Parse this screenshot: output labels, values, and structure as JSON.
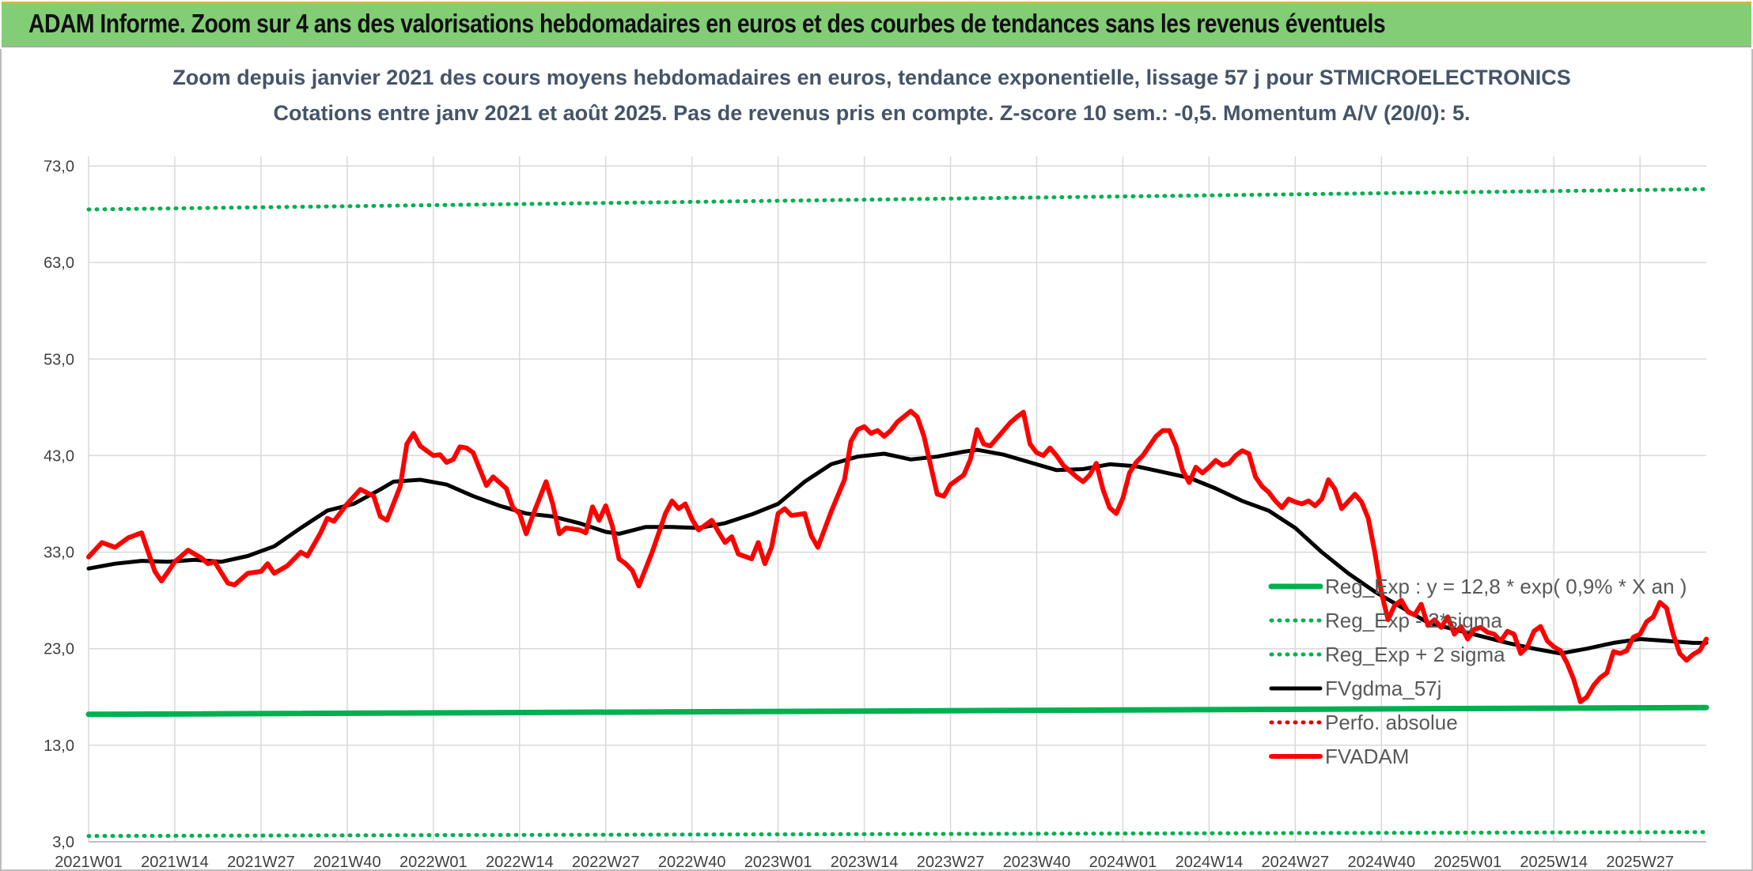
{
  "banner": {
    "title": "ADAM Informe. Zoom sur 4 ans des valorisations hebdomadaires en euros et des courbes de tendances sans les revenus éventuels"
  },
  "colors": {
    "banner_bg": "#82cd76",
    "trend_green": "#00b050",
    "sigma_green": "#00b050",
    "smoothing_black": "#000000",
    "perf_red": "#e00000",
    "price_red": "#ff0000",
    "title_text": "#44546a",
    "grid": "#d9d9d9"
  },
  "chart_data": {
    "type": "line",
    "title": "Zoom depuis janvier 2021 des cours moyens hebdomadaires en euros, tendance exponentielle, lissage 57 j pour STMICROELECTRONICS",
    "subtitle": "Cotations entre janv 2021 et août 2025. Pas de revenus pris en compte. Z-score 10 sem.: -0,5. Momentum A/V (20/0): 5.",
    "xlabel": "",
    "ylabel": "",
    "ylim": [
      3,
      73
    ],
    "yticks": [
      "73,0",
      "63,0",
      "53,0",
      "43,0",
      "33,0",
      "23,0",
      "13,0",
      "3,0"
    ],
    "ytick_values": [
      73,
      63,
      53,
      43,
      33,
      23,
      13,
      3
    ],
    "x_categories": [
      "2021W01",
      "2021W14",
      "2021W27",
      "2021W40",
      "2022W01",
      "2022W14",
      "2022W27",
      "2022W40",
      "2023W01",
      "2023W14",
      "2023W27",
      "2023W40",
      "2024W01",
      "2024W14",
      "2024W27",
      "2024W40",
      "2025W01",
      "2025W14",
      "2025W27"
    ],
    "x_tick_week_index": [
      0,
      13,
      26,
      39,
      52,
      65,
      78,
      91,
      104,
      117,
      130,
      143,
      156,
      169,
      182,
      195,
      208,
      221,
      234
    ],
    "x_week_count": 245,
    "grid": true,
    "legend_position": "bottom-right",
    "series": [
      {
        "name": "Reg_Exp : y = 12,8 * exp( 0,9% *  X  an )",
        "style": "solid-thick",
        "color": "#00b050",
        "points": [
          [
            0,
            16.2
          ],
          [
            244,
            16.9
          ]
        ]
      },
      {
        "name": "Reg_Exp - 2*sigma",
        "style": "dotted",
        "color": "#00b050",
        "points": [
          [
            0,
            3.6
          ],
          [
            244,
            4.0
          ]
        ]
      },
      {
        "name": "Reg_Exp + 2 sigma",
        "style": "dotted",
        "color": "#00b050",
        "points": [
          [
            0,
            68.5
          ],
          [
            244,
            70.6
          ]
        ]
      },
      {
        "name": "FVgdma_57j",
        "style": "solid",
        "color": "#000000",
        "points": [
          [
            0,
            31.3
          ],
          [
            4,
            31.8
          ],
          [
            8,
            32.1
          ],
          [
            12,
            32.0
          ],
          [
            16,
            32.2
          ],
          [
            20,
            32.0
          ],
          [
            24,
            32.6
          ],
          [
            28,
            33.6
          ],
          [
            32,
            35.5
          ],
          [
            36,
            37.3
          ],
          [
            40,
            38.0
          ],
          [
            44,
            39.5
          ],
          [
            46,
            40.3
          ],
          [
            50,
            40.5
          ],
          [
            54,
            40.0
          ],
          [
            58,
            38.8
          ],
          [
            62,
            37.8
          ],
          [
            66,
            37.0
          ],
          [
            70,
            36.7
          ],
          [
            74,
            36.0
          ],
          [
            78,
            35.1
          ],
          [
            80,
            34.9
          ],
          [
            84,
            35.6
          ],
          [
            88,
            35.6
          ],
          [
            92,
            35.5
          ],
          [
            96,
            36.0
          ],
          [
            100,
            36.9
          ],
          [
            104,
            38.0
          ],
          [
            108,
            40.3
          ],
          [
            112,
            42.1
          ],
          [
            116,
            42.9
          ],
          [
            120,
            43.2
          ],
          [
            124,
            42.6
          ],
          [
            128,
            42.9
          ],
          [
            132,
            43.4
          ],
          [
            134,
            43.6
          ],
          [
            138,
            43.1
          ],
          [
            142,
            42.3
          ],
          [
            146,
            41.5
          ],
          [
            150,
            41.6
          ],
          [
            154,
            42.1
          ],
          [
            158,
            41.9
          ],
          [
            162,
            41.3
          ],
          [
            166,
            40.7
          ],
          [
            170,
            39.6
          ],
          [
            174,
            38.3
          ],
          [
            178,
            37.3
          ],
          [
            182,
            35.5
          ],
          [
            186,
            33.0
          ],
          [
            190,
            30.8
          ],
          [
            194,
            28.9
          ],
          [
            198,
            27.3
          ],
          [
            202,
            25.7
          ],
          [
            206,
            25.0
          ],
          [
            210,
            24.3
          ],
          [
            214,
            23.6
          ],
          [
            218,
            23.0
          ],
          [
            222,
            22.5
          ],
          [
            226,
            23.0
          ],
          [
            230,
            23.6
          ],
          [
            234,
            24.0
          ],
          [
            238,
            23.8
          ],
          [
            242,
            23.6
          ],
          [
            244,
            23.6
          ]
        ]
      },
      {
        "name": "Perfo. absolue",
        "style": "dotted",
        "color": "#e00000",
        "points": []
      },
      {
        "name": "FVADAM",
        "style": "solid-thick",
        "color": "#ff0000",
        "points": [
          [
            0,
            32.5
          ],
          [
            2,
            34.0
          ],
          [
            4,
            33.5
          ],
          [
            6,
            34.5
          ],
          [
            8,
            35.0
          ],
          [
            10,
            31.0
          ],
          [
            11,
            30.0
          ],
          [
            13,
            32.0
          ],
          [
            15,
            33.2
          ],
          [
            17,
            32.4
          ],
          [
            18,
            31.8
          ],
          [
            19,
            32.0
          ],
          [
            21,
            29.8
          ],
          [
            22,
            29.6
          ],
          [
            24,
            30.8
          ],
          [
            26,
            31.0
          ],
          [
            27,
            31.8
          ],
          [
            28,
            30.8
          ],
          [
            30,
            31.6
          ],
          [
            31,
            32.3
          ],
          [
            32,
            33.0
          ],
          [
            33,
            32.6
          ],
          [
            35,
            35.0
          ],
          [
            36,
            36.5
          ],
          [
            37,
            36.2
          ],
          [
            39,
            38.0
          ],
          [
            41,
            39.5
          ],
          [
            43,
            38.8
          ],
          [
            44,
            36.7
          ],
          [
            45,
            36.3
          ],
          [
            47,
            39.8
          ],
          [
            48,
            44.2
          ],
          [
            49,
            45.3
          ],
          [
            50,
            44.0
          ],
          [
            52,
            43.0
          ],
          [
            53,
            43.1
          ],
          [
            54,
            42.3
          ],
          [
            55,
            42.6
          ],
          [
            56,
            43.9
          ],
          [
            57,
            43.8
          ],
          [
            58,
            43.3
          ],
          [
            60,
            39.9
          ],
          [
            61,
            40.8
          ],
          [
            63,
            39.6
          ],
          [
            64,
            37.6
          ],
          [
            65,
            37.0
          ],
          [
            66,
            34.9
          ],
          [
            67,
            36.8
          ],
          [
            69,
            40.3
          ],
          [
            70,
            38.0
          ],
          [
            71,
            34.9
          ],
          [
            72,
            35.5
          ],
          [
            74,
            35.3
          ],
          [
            75,
            35.0
          ],
          [
            76,
            37.7
          ],
          [
            77,
            36.3
          ],
          [
            78,
            37.8
          ],
          [
            79,
            35.7
          ],
          [
            80,
            32.3
          ],
          [
            81,
            31.8
          ],
          [
            82,
            31.1
          ],
          [
            83,
            29.5
          ],
          [
            85,
            33.0
          ],
          [
            87,
            37.0
          ],
          [
            88,
            38.3
          ],
          [
            89,
            37.5
          ],
          [
            90,
            38.0
          ],
          [
            91,
            36.4
          ],
          [
            92,
            35.3
          ],
          [
            94,
            36.3
          ],
          [
            95,
            35.1
          ],
          [
            96,
            34.0
          ],
          [
            97,
            34.6
          ],
          [
            98,
            32.8
          ],
          [
            100,
            32.3
          ],
          [
            101,
            34.0
          ],
          [
            102,
            31.8
          ],
          [
            103,
            33.5
          ],
          [
            104,
            37.0
          ],
          [
            105,
            37.5
          ],
          [
            106,
            36.8
          ],
          [
            108,
            37.0
          ],
          [
            109,
            34.7
          ],
          [
            110,
            33.5
          ],
          [
            112,
            37.2
          ],
          [
            114,
            40.5
          ],
          [
            115,
            44.5
          ],
          [
            116,
            45.7
          ],
          [
            117,
            46.0
          ],
          [
            118,
            45.3
          ],
          [
            119,
            45.6
          ],
          [
            120,
            45.0
          ],
          [
            121,
            45.6
          ],
          [
            122,
            46.5
          ],
          [
            124,
            47.6
          ],
          [
            125,
            47.0
          ],
          [
            126,
            45.0
          ],
          [
            128,
            39.0
          ],
          [
            129,
            38.8
          ],
          [
            130,
            40.0
          ],
          [
            132,
            41.0
          ],
          [
            133,
            42.6
          ],
          [
            134,
            45.7
          ],
          [
            135,
            44.2
          ],
          [
            136,
            44.0
          ],
          [
            138,
            45.6
          ],
          [
            139,
            46.4
          ],
          [
            140,
            47.0
          ],
          [
            141,
            47.5
          ],
          [
            142,
            44.2
          ],
          [
            143,
            43.3
          ],
          [
            144,
            43.0
          ],
          [
            145,
            43.8
          ],
          [
            146,
            43.0
          ],
          [
            147,
            42.0
          ],
          [
            149,
            40.8
          ],
          [
            150,
            40.3
          ],
          [
            151,
            41.0
          ],
          [
            152,
            42.2
          ],
          [
            153,
            39.5
          ],
          [
            154,
            37.6
          ],
          [
            155,
            37.0
          ],
          [
            156,
            38.6
          ],
          [
            157,
            41.2
          ],
          [
            158,
            42.3
          ],
          [
            159,
            43.0
          ],
          [
            161,
            45.0
          ],
          [
            162,
            45.6
          ],
          [
            163,
            45.6
          ],
          [
            164,
            44.0
          ],
          [
            165,
            41.5
          ],
          [
            166,
            40.2
          ],
          [
            167,
            41.8
          ],
          [
            168,
            41.2
          ],
          [
            169,
            41.8
          ],
          [
            170,
            42.5
          ],
          [
            171,
            42.0
          ],
          [
            172,
            42.2
          ],
          [
            173,
            43.0
          ],
          [
            174,
            43.5
          ],
          [
            175,
            43.2
          ],
          [
            176,
            40.8
          ],
          [
            177,
            39.8
          ],
          [
            178,
            39.2
          ],
          [
            179,
            38.3
          ],
          [
            180,
            37.6
          ],
          [
            181,
            38.5
          ],
          [
            182,
            38.2
          ],
          [
            183,
            38.0
          ],
          [
            184,
            38.3
          ],
          [
            185,
            37.8
          ],
          [
            186,
            38.5
          ],
          [
            187,
            40.5
          ],
          [
            188,
            39.5
          ],
          [
            189,
            37.5
          ],
          [
            191,
            39.0
          ],
          [
            192,
            38.2
          ],
          [
            193,
            36.5
          ],
          [
            194,
            33.0
          ],
          [
            195,
            28.8
          ],
          [
            196,
            26.0
          ],
          [
            197,
            27.5
          ],
          [
            198,
            28.0
          ],
          [
            199,
            26.8
          ],
          [
            200,
            26.5
          ],
          [
            201,
            27.6
          ],
          [
            202,
            25.4
          ],
          [
            203,
            26.0
          ],
          [
            204,
            25.2
          ],
          [
            205,
            26.3
          ],
          [
            206,
            24.5
          ],
          [
            207,
            25.3
          ],
          [
            208,
            24.0
          ],
          [
            209,
            25.0
          ],
          [
            210,
            25.2
          ],
          [
            211,
            24.7
          ],
          [
            212,
            24.5
          ],
          [
            213,
            23.8
          ],
          [
            214,
            24.8
          ],
          [
            215,
            24.5
          ],
          [
            216,
            22.5
          ],
          [
            217,
            23.2
          ],
          [
            218,
            24.8
          ],
          [
            219,
            25.3
          ],
          [
            220,
            23.8
          ],
          [
            221,
            23.2
          ],
          [
            222,
            22.8
          ],
          [
            223,
            21.5
          ],
          [
            224,
            19.8
          ],
          [
            225,
            17.5
          ],
          [
            226,
            18.0
          ],
          [
            227,
            19.2
          ],
          [
            228,
            20.0
          ],
          [
            229,
            20.5
          ],
          [
            230,
            22.7
          ],
          [
            231,
            22.5
          ],
          [
            232,
            22.8
          ],
          [
            233,
            24.2
          ],
          [
            234,
            24.5
          ],
          [
            235,
            25.8
          ],
          [
            236,
            26.3
          ],
          [
            237,
            27.8
          ],
          [
            238,
            27.2
          ],
          [
            239,
            24.5
          ],
          [
            240,
            22.5
          ],
          [
            241,
            21.8
          ],
          [
            242,
            22.4
          ],
          [
            243,
            22.8
          ],
          [
            244,
            24.0
          ]
        ]
      }
    ]
  }
}
